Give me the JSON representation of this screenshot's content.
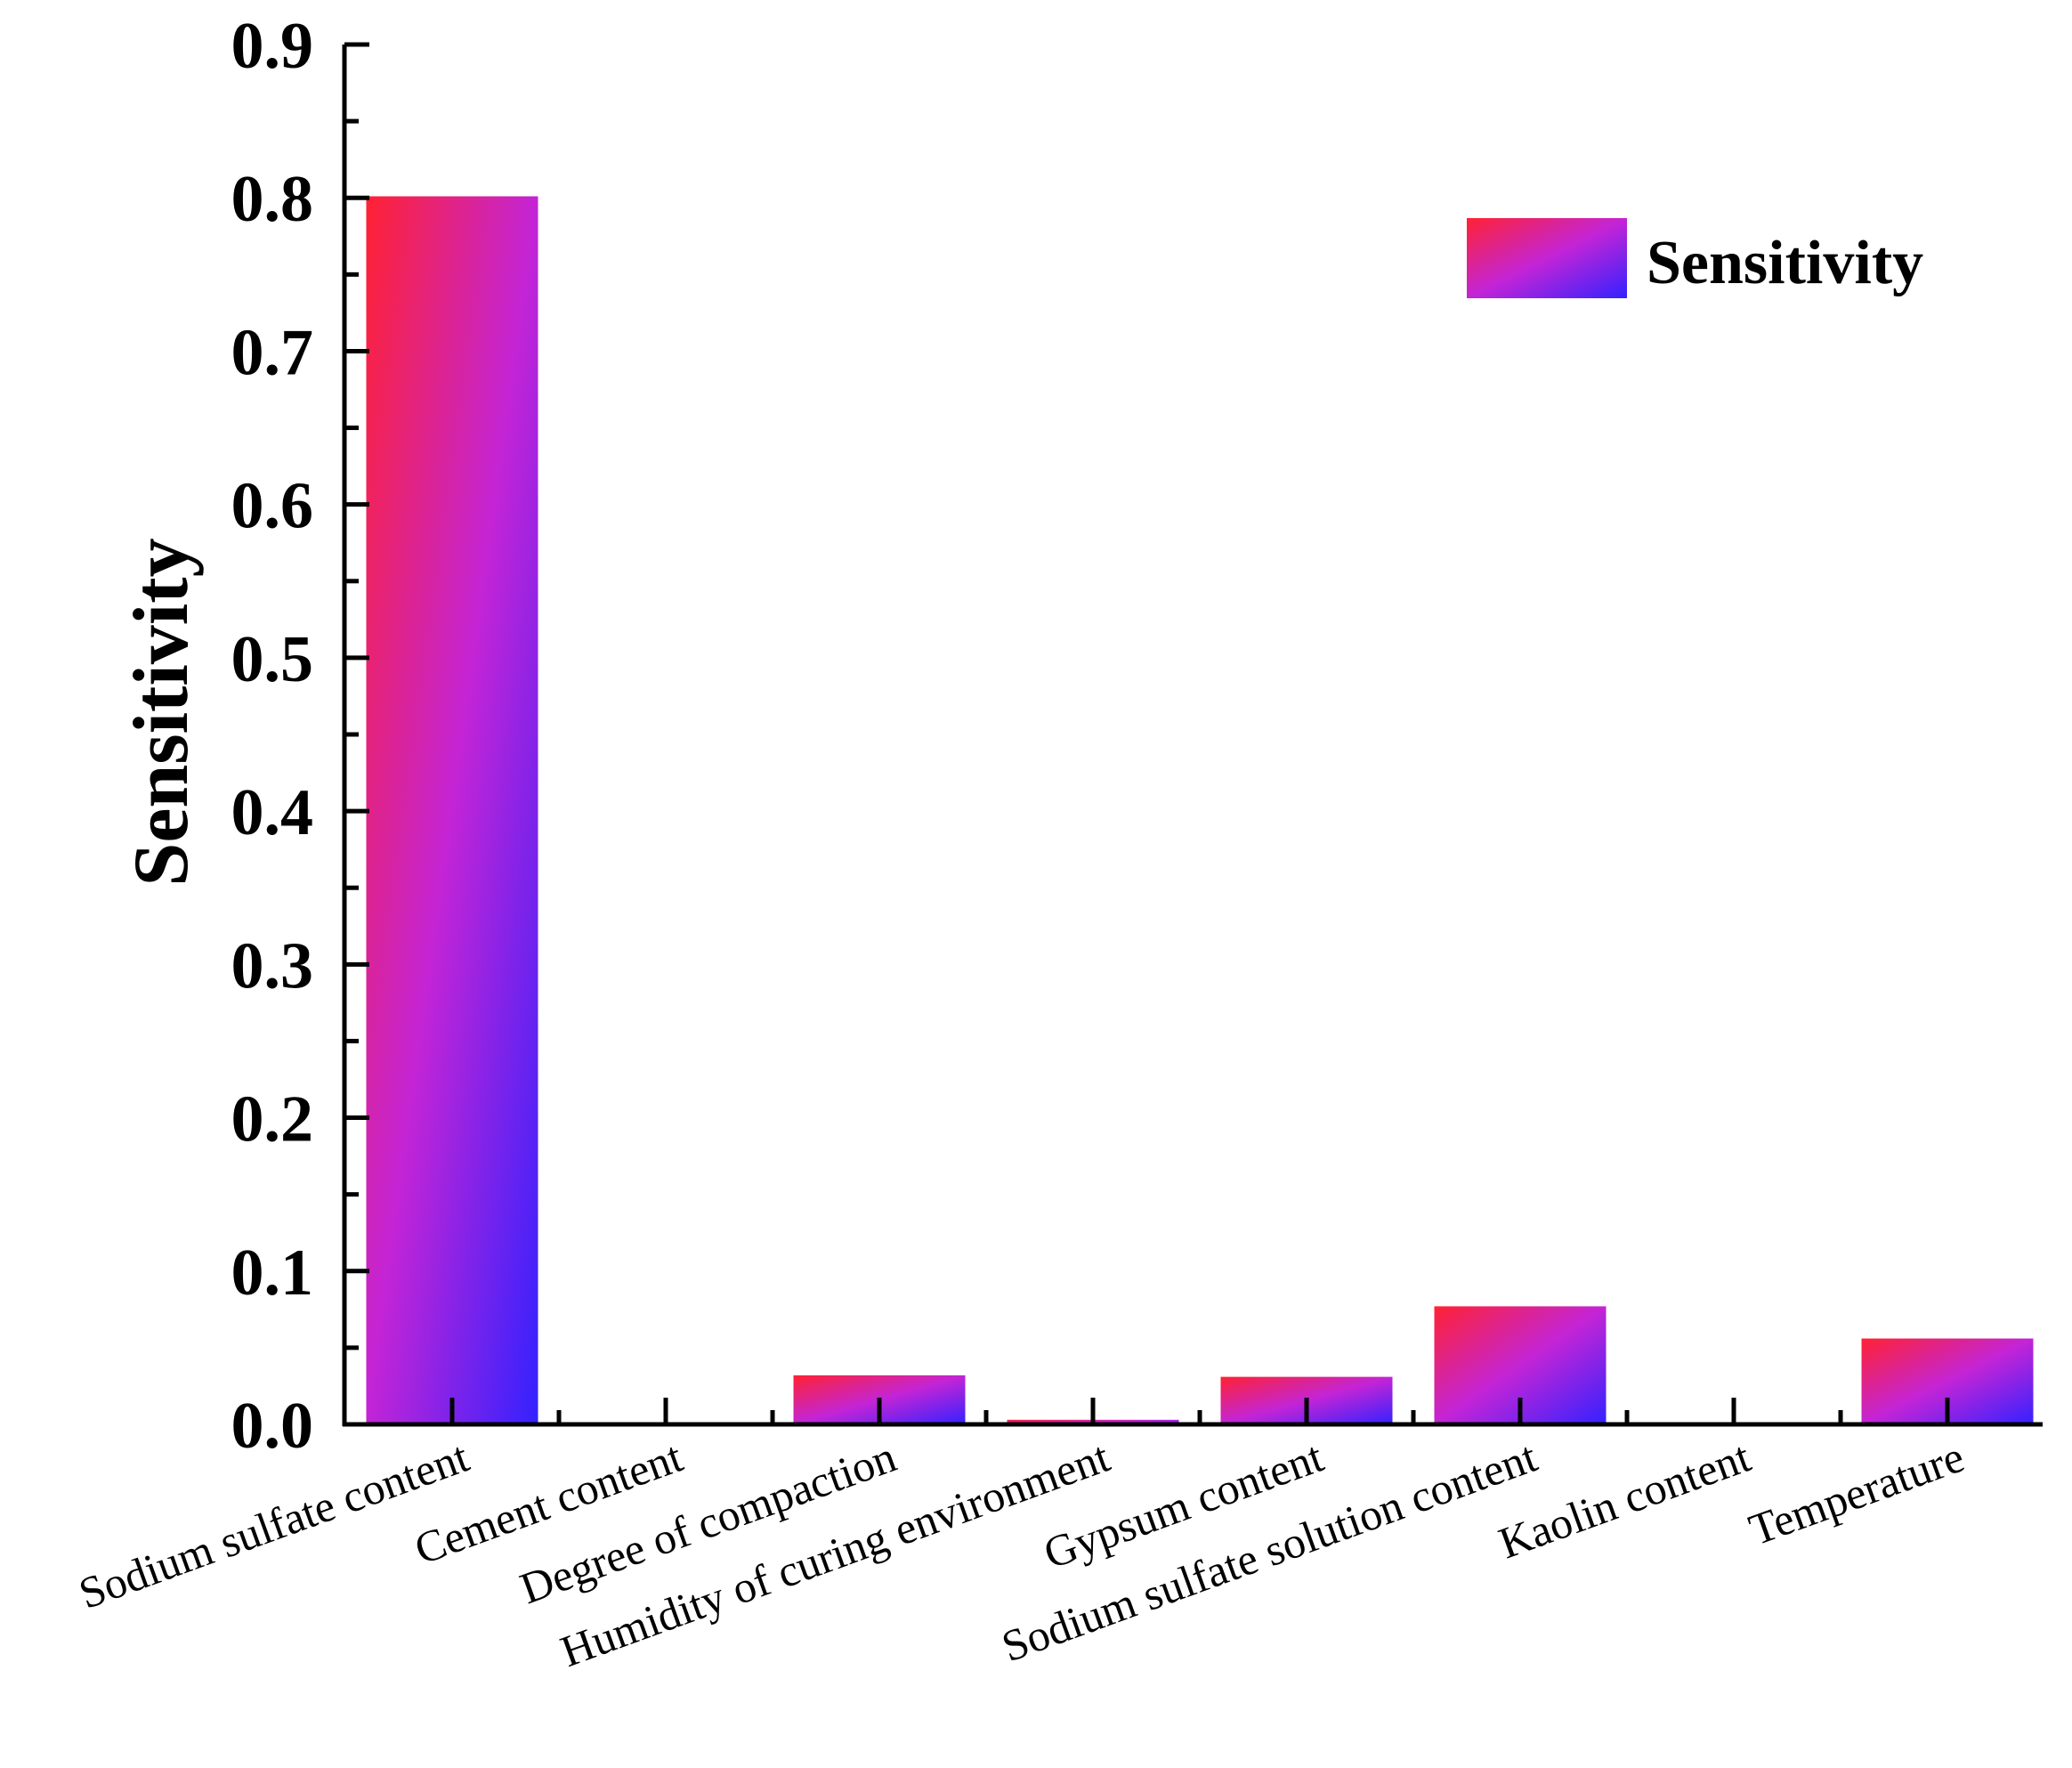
{
  "chart_data": {
    "type": "bar",
    "title": "",
    "xlabel": "",
    "ylabel": "Sensitivity",
    "ylim": [
      0,
      0.9
    ],
    "yticks": [
      "0.0",
      "0.1",
      "0.2",
      "0.3",
      "0.4",
      "0.5",
      "0.6",
      "0.7",
      "0.8",
      "0.9"
    ],
    "categories": [
      "Sodium sulfate content",
      "Cement content",
      "Degree of compaction",
      "Humidity of curing environment",
      "Gypsum content",
      "Sodium sulfate solution content",
      "Kaolin content",
      "Temperature"
    ],
    "series": [
      {
        "name": "Sensitivity",
        "values": [
          0.801,
          0.0,
          0.032,
          0.003,
          0.031,
          0.077,
          0.0,
          0.056
        ]
      }
    ],
    "legend": {
      "position": "top-right",
      "label": "Sensitivity"
    },
    "colors": {
      "gradient_start": "#ff2233",
      "gradient_mid": "#c324d6",
      "gradient_end": "#3322ff",
      "axis": "#000000"
    }
  }
}
